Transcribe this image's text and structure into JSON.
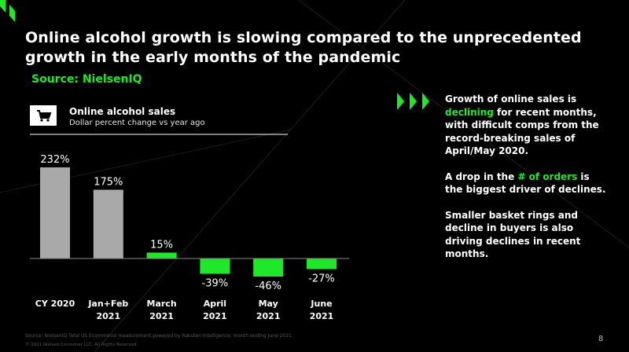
{
  "title": "Online alcohol growth is slowing compared to the unprecedented growth in the early months of the pandemic",
  "source": "Source: NielsenIQ",
  "colors": {
    "background": "#000000",
    "accent_green": "#1fe82a",
    "bar_gray": "#a9a9a9",
    "bar_green": "#1fe82a"
  },
  "chart_icon": "shopping-cart-icon",
  "chart_data": {
    "type": "bar",
    "title": "Online alcohol sales",
    "subtitle": "Dollar percent change vs year ago",
    "categories": [
      "CY 2020",
      "Jan+Feb 2021",
      "March 2021",
      "April 2021",
      "May 2021",
      "June 2021"
    ],
    "category_lines": [
      [
        "CY 2020"
      ],
      [
        "Jan+Feb",
        "2021"
      ],
      [
        "March",
        "2021"
      ],
      [
        "April",
        "2021"
      ],
      [
        "May",
        "2021"
      ],
      [
        "June",
        "2021"
      ]
    ],
    "values": [
      232,
      175,
      15,
      -39,
      -46,
      -27
    ],
    "value_labels": [
      "232%",
      "175%",
      "15%",
      "-39%",
      "-46%",
      "-27%"
    ],
    "bar_colors": [
      "#a9a9a9",
      "#a9a9a9",
      "#1fe82a",
      "#1fe82a",
      "#1fe82a",
      "#1fe82a"
    ],
    "ylim": [
      -46,
      232
    ],
    "grid": false,
    "xlabel": "",
    "ylabel": ""
  },
  "arrows_icon": "triple-chevron-right-icon",
  "bullets": [
    {
      "before": "Growth of online sales is ",
      "highlight": "declining",
      "after": " for recent months, with difficult comps from the record-breaking sales of April/May 2020."
    },
    {
      "before": "A drop in the ",
      "highlight": "# of orders",
      "after": " is the biggest driver of declines."
    },
    {
      "before": "Smaller basket rings and decline in buyers is also driving declines in recent months.",
      "highlight": "",
      "after": ""
    }
  ],
  "footnote": "Source: NielsenIQ Total US Ecommerce measurement powered by Rakuten Intelligence; month ending June 2021",
  "copyright": "© 2021 Nielsen Consumer LLC. All Rights Reserved.",
  "page_number": "8"
}
